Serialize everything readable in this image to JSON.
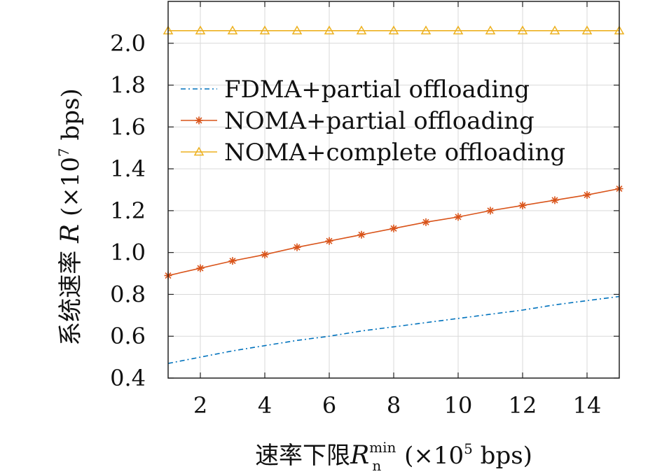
{
  "chart_data": {
    "type": "line",
    "xlabel": {
      "prefix": "速率下限",
      "symbol": "R",
      "subscript": "n",
      "superscript": "min",
      "unit_open": " (×10",
      "unit_exp": "5",
      "unit_close": " bps)"
    },
    "ylabel": {
      "prefix": "系统速率 ",
      "symbol": "R",
      "unit_open": " (×10",
      "unit_exp": "7",
      "unit_close": " bps)"
    },
    "xlim": [
      1,
      15
    ],
    "ylim": [
      0.4,
      2.2
    ],
    "xticks": [
      2,
      4,
      6,
      8,
      10,
      12,
      14
    ],
    "yticks": [
      0.4,
      0.6,
      0.8,
      1.0,
      1.2,
      1.4,
      1.6,
      1.8,
      2.0
    ],
    "ytick_labels": [
      "0.4",
      "0.6",
      "0.8",
      "1.0",
      "1.2",
      "1.4",
      "1.6",
      "1.8",
      "2.0"
    ],
    "grid": true,
    "legend_position": "upper-right",
    "x": [
      1,
      2,
      3,
      4,
      5,
      6,
      7,
      8,
      9,
      10,
      11,
      12,
      13,
      14,
      15
    ],
    "series": [
      {
        "name": "FDMA+partial offloading",
        "color": "#0072BD",
        "style": "dash-dot",
        "marker": "none",
        "values": [
          0.47,
          0.5,
          0.53,
          0.555,
          0.58,
          0.6,
          0.625,
          0.645,
          0.665,
          0.685,
          0.705,
          0.725,
          0.75,
          0.77,
          0.79
        ]
      },
      {
        "name": "NOMA+partial offloading",
        "color": "#D95319",
        "style": "solid",
        "marker": "asterisk",
        "values": [
          0.89,
          0.925,
          0.96,
          0.99,
          1.025,
          1.055,
          1.085,
          1.115,
          1.145,
          1.17,
          1.2,
          1.225,
          1.25,
          1.275,
          1.305
        ]
      },
      {
        "name": "NOMA+complete offloading",
        "color": "#EDB120",
        "style": "solid",
        "marker": "triangle",
        "values": [
          2.06,
          2.06,
          2.06,
          2.06,
          2.06,
          2.06,
          2.06,
          2.06,
          2.06,
          2.06,
          2.06,
          2.06,
          2.06,
          2.06,
          2.06
        ]
      }
    ]
  }
}
